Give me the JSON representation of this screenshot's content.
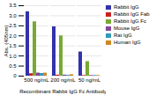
{
  "chart_data": {
    "type": "bar",
    "categories": [
      "500 ng/mL",
      "200 ng/mL",
      "50 ng/mL"
    ],
    "series": [
      {
        "name": "Rabbit IgG",
        "color": "#3333aa",
        "values": [
          3.2,
          2.45,
          1.2
        ]
      },
      {
        "name": "Rabbit IgG Fab",
        "color": "#cc2222",
        "values": [
          0.12,
          0.05,
          0.03
        ]
      },
      {
        "name": "Rabbit IgG Fc",
        "color": "#77aa33",
        "values": [
          2.7,
          2.0,
          0.72
        ]
      },
      {
        "name": "Mouse IgG",
        "color": "#884499",
        "values": [
          0.15,
          0.05,
          0.03
        ]
      },
      {
        "name": "Rat IgG",
        "color": "#3399bb",
        "values": [
          0.13,
          0.04,
          0.03
        ]
      },
      {
        "name": "Human IgG",
        "color": "#cc8822",
        "values": [
          0.15,
          0.07,
          0.03
        ]
      }
    ],
    "xlabel": "Recombinant Rabbit IgG Fc Antibody",
    "ylabel": "Abs. (405nm)",
    "ylim": [
      0,
      3.5
    ],
    "yticks": [
      0,
      0.5,
      {
        "value": 1,
        "label": "1.0"
      },
      1.5,
      {
        "value": 2,
        "label": "2.0"
      },
      2.5,
      {
        "value": 3,
        "label": "3.0"
      },
      3.5
    ],
    "grid": true,
    "legend": "right"
  }
}
